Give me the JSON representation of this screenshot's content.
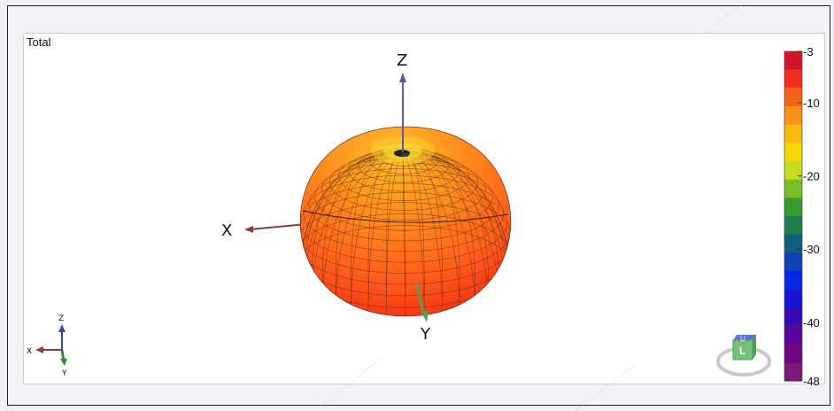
{
  "panel": {
    "label": "Total"
  },
  "axes": {
    "x": "X",
    "y": "Y",
    "z": "Z"
  },
  "triad": {
    "x": "X",
    "y": "Y",
    "z": "Z"
  },
  "colorbar": {
    "ticks": [
      "-3",
      "-10",
      "-20",
      "-30",
      "-40",
      "-48"
    ],
    "tick_values": [
      -3,
      -10,
      -20,
      -30,
      -40,
      -48
    ],
    "min": -48,
    "max": -3,
    "colors": [
      "#d2152b",
      "#f0301d",
      "#f5641a",
      "#f99318",
      "#fbb911",
      "#f4d807",
      "#c9da20",
      "#79bf28",
      "#3a9b35",
      "#1f7e4f",
      "#0f5f7e",
      "#0d44b5",
      "#0827e2",
      "#1814d6",
      "#3909b7",
      "#5a0599",
      "#6f067f",
      "#7d1a79"
    ]
  },
  "view_cube": {
    "top": "U",
    "front": "L"
  },
  "watermark": "RGRG",
  "colors": {
    "x_axis": "#8e3a3a",
    "y_axis": "#5c9a55",
    "z_axis": "#5a58a8",
    "pattern_light": "#ffae1a",
    "pattern_mid": "#ff6a1f",
    "pattern_dark": "#ef2a17"
  }
}
